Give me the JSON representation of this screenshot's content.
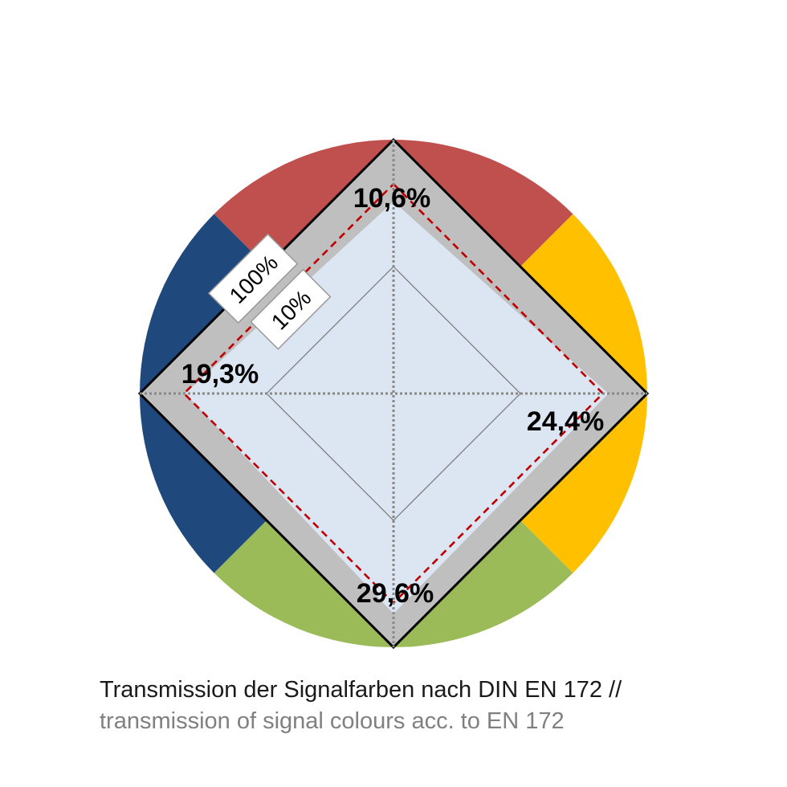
{
  "chart_data": {
    "type": "radar",
    "axes": [
      "red",
      "yellow",
      "green",
      "blue"
    ],
    "axis_colors": [
      "#c0504d",
      "#ffc000",
      "#9bbb59",
      "#1f497d"
    ],
    "values_percent": [
      10.6,
      24.4,
      29.6,
      19.3
    ],
    "value_labels": [
      "10,6%",
      "24,4%",
      "29,6%",
      "19,3%"
    ],
    "scale": "log",
    "rings": [
      {
        "value": 100,
        "label": "100%"
      },
      {
        "value": 10,
        "label": "10%"
      },
      {
        "value": 1,
        "label": ""
      }
    ],
    "threshold_dashed_percent": [
      20,
      20,
      20,
      20
    ],
    "threshold_color": "#c00000",
    "band_color": "#bfbfbf",
    "fill_color": "#dce6f2"
  },
  "caption": {
    "line1": "Transmission der Signalfarben nach DIN EN 172 //",
    "line2": "transmission of signal colours acc. to EN 172"
  }
}
